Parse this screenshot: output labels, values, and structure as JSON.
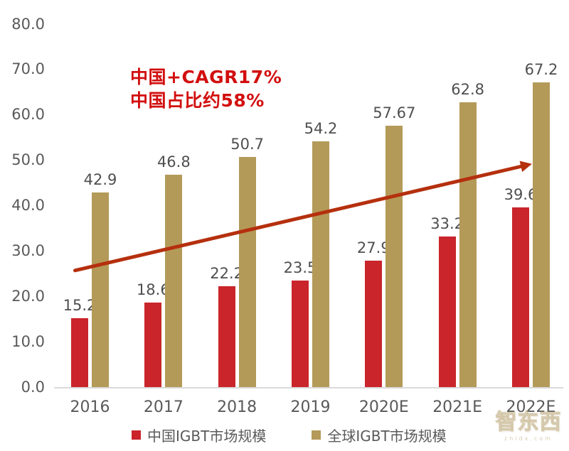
{
  "chart_data": {
    "type": "bar",
    "title": "",
    "categories": [
      "2016",
      "2017",
      "2018",
      "2019",
      "2020E",
      "2021E",
      "2022E"
    ],
    "series": [
      {
        "name": "中国IGBT市场规模",
        "color": "#C9252B",
        "values": [
          15.2,
          18.6,
          22.2,
          23.5,
          27.9,
          33.2,
          39.6
        ],
        "labels": [
          "15.2",
          "18.6",
          "22.2",
          "23.5",
          "27.9",
          "33.2",
          "39.6"
        ]
      },
      {
        "name": "全球IGBT市场规模",
        "color": "#B49A58",
        "values": [
          42.9,
          46.8,
          50.7,
          54.2,
          57.67,
          62.8,
          67.2
        ],
        "labels": [
          "42.9",
          "46.8",
          "50.7",
          "54.2",
          "57.67",
          "62.8",
          "67.2"
        ]
      }
    ],
    "ylim": [
      0,
      80
    ],
    "y_tick_labels": [
      "80.0",
      "70.0",
      "60.0",
      "50.0",
      "40.0",
      "30.0",
      "20.0",
      "10.0",
      "0.0"
    ],
    "y_tick_values": [
      80,
      70,
      60,
      50,
      40,
      30,
      20,
      10,
      0
    ],
    "xlabel": "",
    "ylabel": "",
    "grid": false,
    "legend_position": "bottom",
    "axis_color": "#D9D9D9",
    "tick_label_color": "#595959",
    "data_label_color": "#4F4F4F",
    "annotation": {
      "lines": [
        "中国+CAGR17%",
        "中国占比约58%"
      ],
      "color": "#D20F0F"
    },
    "trend_arrow": {
      "color": "#B5300E",
      "from": {
        "category_index": 0,
        "value": 25.7
      },
      "to": {
        "category_index": 6,
        "value": 49.2
      }
    }
  },
  "watermark": {
    "text": "智东西",
    "subtext": "zhidx.com"
  }
}
